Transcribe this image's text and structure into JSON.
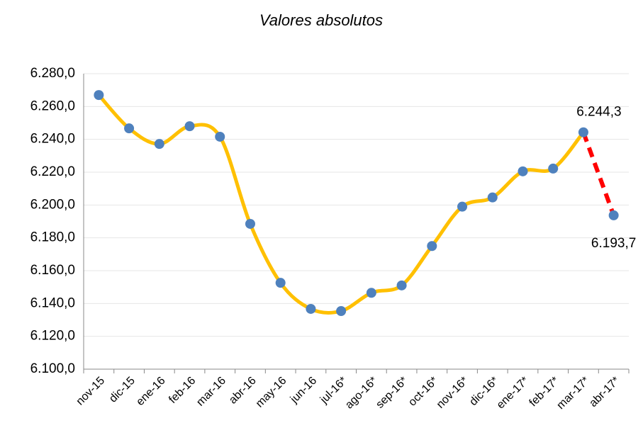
{
  "chart_data": {
    "type": "line",
    "title": "Valores absolutos",
    "categories": [
      "nov-15",
      "dic-15",
      "ene-16",
      "feb-16",
      "mar-16",
      "abr-16",
      "may-16",
      "jun-16",
      "jul-16*",
      "ago-16*",
      "sep-16*",
      "oct-16*",
      "nov-16*",
      "dic-16*",
      "ene-17*",
      "feb-17*",
      "mar-17*",
      "abr-17*"
    ],
    "series": [
      {
        "color": "#ffc000",
        "marker_color": "#4f81bd",
        "last_segment_color": "#ff0000",
        "last_segment_dashed": true,
        "values": [
          6267,
          6246.7,
          6237.2,
          6248,
          6241.6,
          6188.5,
          6152.6,
          6136.7,
          6135.4,
          6146.5,
          6151,
          6175,
          6199,
          6204.6,
          6220.5,
          6222.2,
          6244.3,
          6193.7
        ],
        "value_labels": [
          null,
          null,
          null,
          null,
          null,
          null,
          null,
          null,
          null,
          null,
          null,
          null,
          null,
          null,
          null,
          null,
          "6.244,3",
          "6.193,7"
        ]
      }
    ],
    "ylim": [
      6100,
      6280
    ],
    "yticks": [
      {
        "value": 6100,
        "label": "6.100,0"
      },
      {
        "value": 6120,
        "label": "6.120,0"
      },
      {
        "value": 6140,
        "label": "6.140,0"
      },
      {
        "value": 6160,
        "label": "6.160,0"
      },
      {
        "value": 6180,
        "label": "6.180,0"
      },
      {
        "value": 6200,
        "label": "6.200,0"
      },
      {
        "value": 6220,
        "label": "6.220,0"
      },
      {
        "value": 6240,
        "label": "6.240,0"
      },
      {
        "value": 6260,
        "label": "6.260,0"
      },
      {
        "value": 6280,
        "label": "6.280,0"
      }
    ],
    "grid": true
  }
}
